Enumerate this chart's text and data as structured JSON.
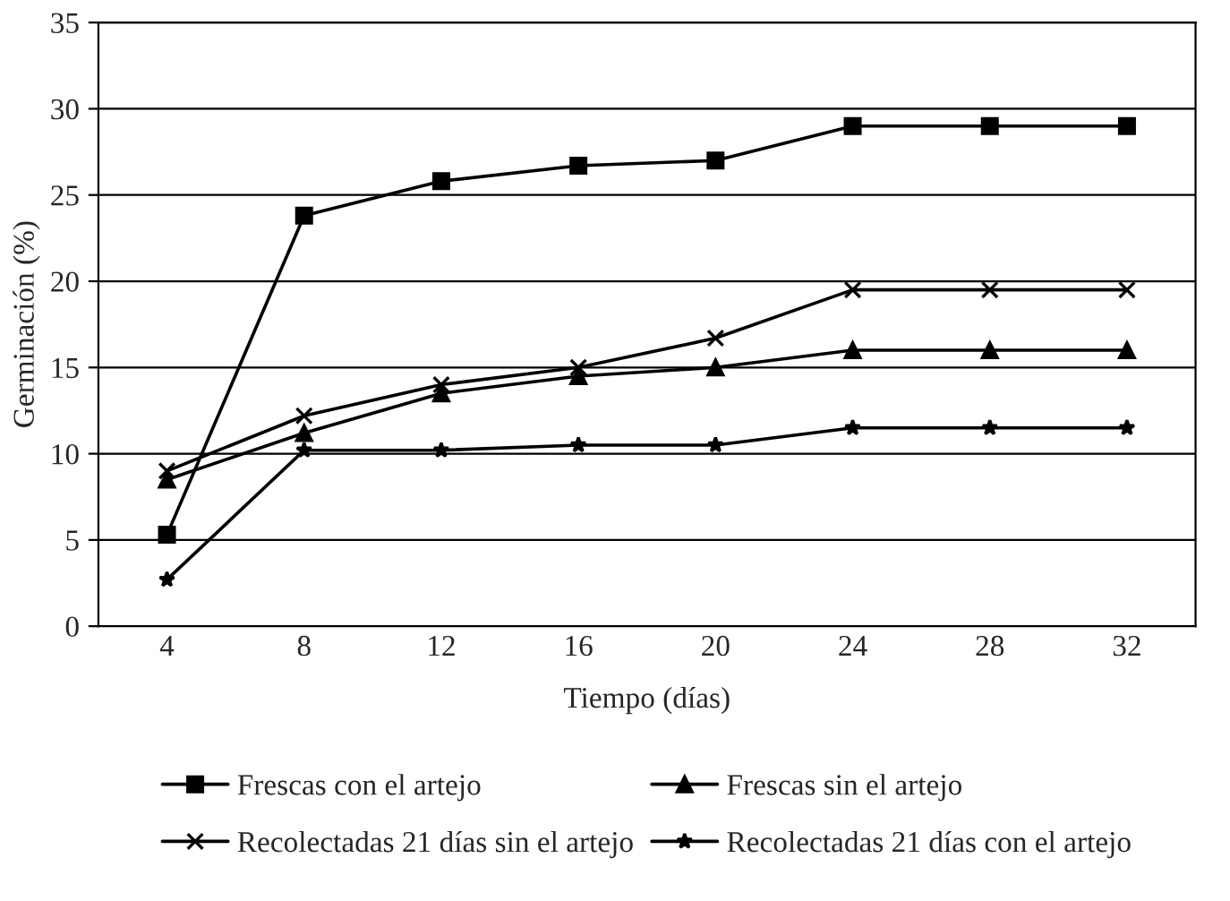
{
  "chart_data": {
    "type": "line",
    "xlabel": "Tiempo (días)",
    "ylabel": "Germinación (%)",
    "categories": [
      "4",
      "8",
      "12",
      "16",
      "20",
      "24",
      "28",
      "32"
    ],
    "ylim": [
      0,
      35
    ],
    "yticks": [
      0,
      5,
      10,
      15,
      20,
      25,
      30,
      35
    ],
    "grid": "y",
    "legend": "bottom",
    "line_style": "solid",
    "series": [
      {
        "name": "Frescas con el artejo",
        "color": "#000000",
        "marker": "square",
        "values": [
          5.3,
          23.8,
          25.8,
          26.7,
          27,
          29,
          29,
          29
        ]
      },
      {
        "name": "Frescas sin el artejo",
        "color": "#000000",
        "marker": "triangle",
        "values": [
          8.5,
          11.2,
          13.5,
          14.5,
          15,
          16,
          16,
          16
        ]
      },
      {
        "name": "Recolectadas 21 días sin el artejo",
        "color": "#000000",
        "marker": "cross",
        "values": [
          9,
          12.2,
          14,
          15,
          16.7,
          19.5,
          19.5,
          19.5
        ]
      },
      {
        "name": "Recolectadas 21 días con el artejo",
        "color": "#000000",
        "marker": "star",
        "values": [
          2.7,
          10.2,
          10.2,
          10.5,
          10.5,
          11.5,
          11.5,
          11.5
        ]
      }
    ]
  }
}
